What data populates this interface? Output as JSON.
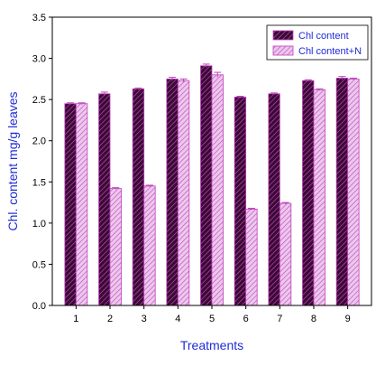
{
  "chart_data": {
    "type": "bar",
    "categories": [
      "1",
      "2",
      "3",
      "4",
      "5",
      "6",
      "7",
      "8",
      "9"
    ],
    "series": [
      {
        "name": "Chl content",
        "values": [
          2.45,
          2.57,
          2.63,
          2.75,
          2.91,
          2.53,
          2.57,
          2.73,
          2.76
        ],
        "errors": [
          0.01,
          0.02,
          0.01,
          0.02,
          0.02,
          0.01,
          0.01,
          0.01,
          0.02
        ]
      },
      {
        "name": "Chl content+N",
        "values": [
          2.45,
          1.42,
          1.45,
          2.73,
          2.8,
          1.17,
          1.24,
          2.62,
          2.75
        ],
        "errors": [
          0.01,
          0.01,
          0.01,
          0.02,
          0.03,
          0.01,
          0.01,
          0.01,
          0.01
        ]
      }
    ],
    "title": "",
    "xlabel": "Treatments",
    "ylabel": "Chl. content mg/g leaves",
    "ylim": [
      0,
      3.5
    ],
    "yticks": [
      "0.0",
      "0.5",
      "1.0",
      "1.5",
      "2.0",
      "2.5",
      "3.0",
      "3.5"
    ],
    "legend_position": "top-right",
    "grid": false,
    "colors": {
      "series1_fill": "#3a0a35",
      "series1_hatch": "#d050c8",
      "series2_fill": "#ecc8ec",
      "series2_hatch": "#c040bc",
      "error_bar": "#c040bc",
      "axis_title": "#1f2bd6"
    }
  }
}
